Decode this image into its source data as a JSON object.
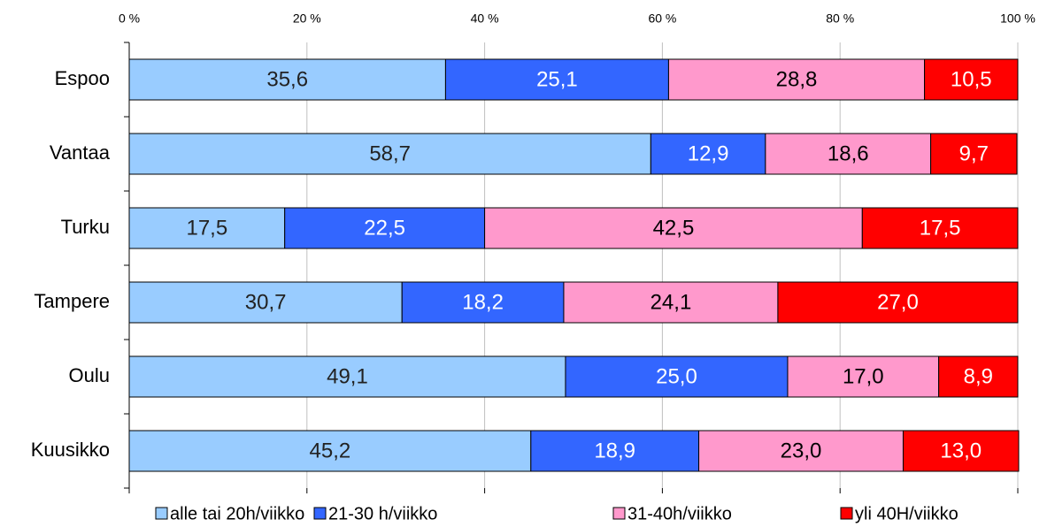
{
  "chart_data": {
    "type": "stacked_barh",
    "categories": [
      "Espoo",
      "Vantaa",
      "Turku",
      "Tampere",
      "Oulu",
      "Kuusikko"
    ],
    "series": [
      {
        "name": "alle tai 20h/viikko",
        "color": "#99ccff",
        "label_color": "#222222",
        "values": [
          35.6,
          58.7,
          17.5,
          30.7,
          49.1,
          45.2
        ],
        "value_labels": [
          "35,6",
          "58,7",
          "17,5",
          "30,7",
          "49,1",
          "45,2"
        ]
      },
      {
        "name": "21-30 h/viikko",
        "color": "#3366ff",
        "label_color": "#ffffff",
        "values": [
          25.1,
          12.9,
          22.5,
          18.2,
          25.0,
          18.9
        ],
        "value_labels": [
          "25,1",
          "12,9",
          "22,5",
          "18,2",
          "25,0",
          "18,9"
        ]
      },
      {
        "name": "31-40h/viikko",
        "color": "#ff99cc",
        "label_color": "#000000",
        "values": [
          28.8,
          18.6,
          42.5,
          24.1,
          17.0,
          23.0
        ],
        "value_labels": [
          "28,8",
          "18,6",
          "42,5",
          "24,1",
          "17,0",
          "23,0"
        ]
      },
      {
        "name": "yli 40H/viikko",
        "color": "#ff0000",
        "label_color": "#ffffff",
        "values": [
          10.5,
          9.7,
          17.5,
          27.0,
          8.9,
          13.0
        ],
        "value_labels": [
          "10,5",
          "9,7",
          "17,5",
          "27,0",
          "8,9",
          "13,0"
        ]
      }
    ],
    "xlim": [
      0,
      100
    ],
    "xticks": [
      {
        "value": 0,
        "label": "0 %"
      },
      {
        "value": 20,
        "label": "20 %"
      },
      {
        "value": 40,
        "label": "40 %"
      },
      {
        "value": 60,
        "label": "60 %"
      },
      {
        "value": 80,
        "label": "80 %"
      },
      {
        "value": 100,
        "label": "100 %"
      }
    ],
    "grid": true,
    "legend": "bottom"
  }
}
